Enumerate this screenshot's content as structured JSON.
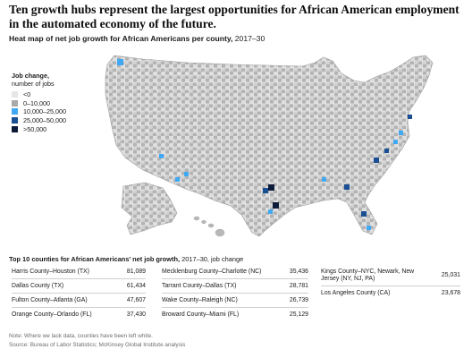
{
  "headline": "Ten growth hubs represent the largest opportunities for African American employment in the automated economy of the future.",
  "subtitle": {
    "bold": "Heat map of net job growth for African Americans per county,",
    "period": " 2017–30"
  },
  "legend": {
    "title": "Job change,",
    "unit": "number of jobs",
    "items": [
      {
        "label": "<0",
        "color": "#e6e6e6"
      },
      {
        "label": "0–10,000",
        "color": "#a9a9a9"
      },
      {
        "label": "10,000–25,000",
        "color": "#3fa9f5"
      },
      {
        "label": "25,000–50,000",
        "color": "#1a4f93"
      },
      {
        "label": ">50,000",
        "color": "#0d1b3a"
      }
    ]
  },
  "top10": {
    "title_bold": "Top 10 counties for African Americans’ net job growth,",
    "title_rest": " 2017–30, job change",
    "columns": [
      [
        {
          "county": "Harris County–Houston (TX)",
          "jobs": "81,089"
        },
        {
          "county": "Dallas County (TX)",
          "jobs": "61,434"
        },
        {
          "county": "Fulton County–Atlanta (GA)",
          "jobs": "47,607"
        },
        {
          "county": "Orange County–Orlando (FL)",
          "jobs": "37,430"
        }
      ],
      [
        {
          "county": "Mecklenburg County–Charlotte (NC)",
          "jobs": "35,436"
        },
        {
          "county": "Tarrant County–Dallas (TX)",
          "jobs": "28,781"
        },
        {
          "county": "Wake County–Raleigh (NC)",
          "jobs": "26,739"
        },
        {
          "county": "Broward County–Miami (FL)",
          "jobs": "25,129"
        }
      ],
      [
        {
          "county": "Kings County–NYC, Newark, New Jersey (NY, NJ, PA)",
          "jobs": "25,031"
        },
        {
          "county": "Los Angeles County (CA)",
          "jobs": "23,678"
        }
      ]
    ]
  },
  "note": "Note: Where we lack data, counties have been left white.",
  "source": "Source: Bureau of Labor Statistics; McKinsey Global Institute analysis"
}
